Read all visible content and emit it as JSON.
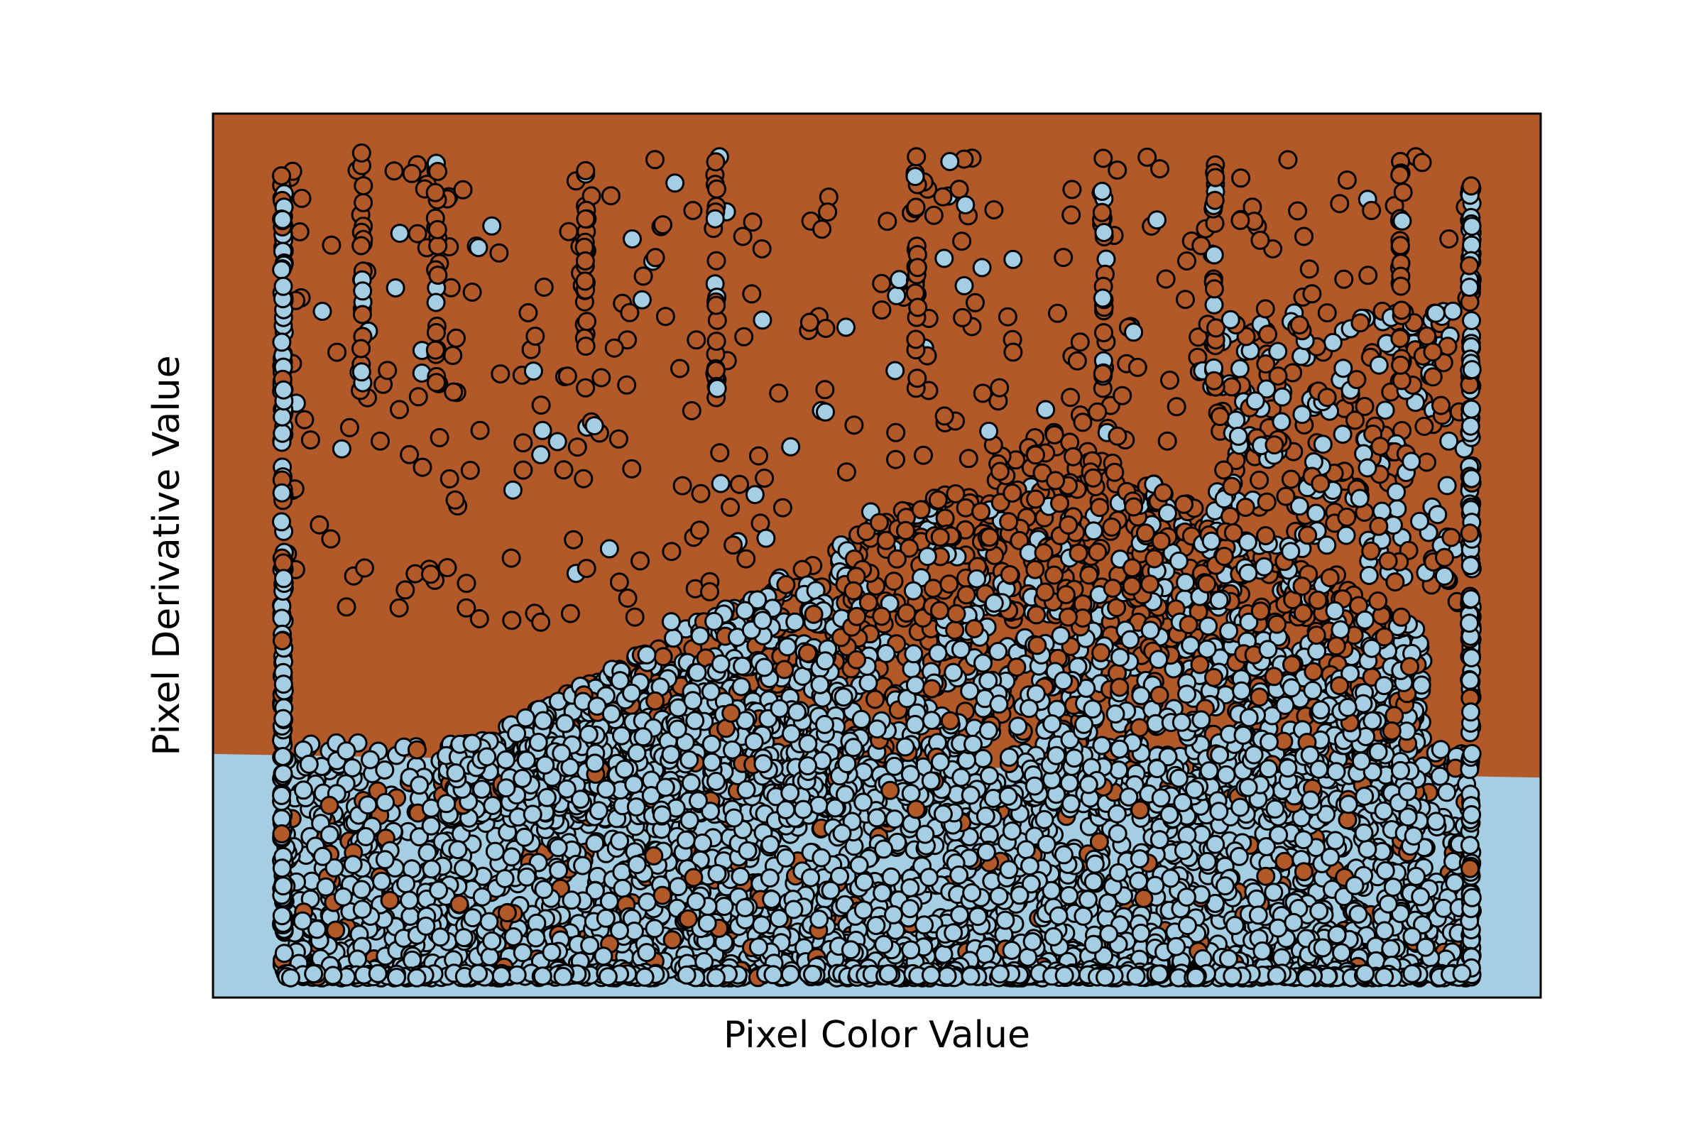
{
  "chart_data": {
    "type": "scatter",
    "title": "",
    "xlabel": "Pixel Color Value",
    "ylabel": "Pixel Derivative Value",
    "xlim": [
      -15,
      270
    ],
    "ylim": [
      -5,
      220
    ],
    "grid": false,
    "legend": "none",
    "x_ticks_shown": false,
    "y_ticks_shown": false,
    "classes": [
      {
        "name": "",
        "color": "#b15928"
      },
      {
        "name": "",
        "color": "#a6cee3"
      }
    ],
    "decision_boundary": {
      "upper_region_color": "#b15928",
      "lower_region_color": "#a6cee3",
      "line": [
        [
          -15,
          57
        ],
        [
          270,
          51
        ]
      ]
    },
    "point_count_estimate": 6000,
    "point_distribution": {
      "x_range": [
        0,
        255
      ],
      "y_range": [
        0,
        210
      ],
      "dense_band_upper_y": 48,
      "vertical_streak_x": [
        0,
        17,
        33,
        65,
        93,
        136,
        176,
        200,
        240,
        255
      ]
    },
    "colors": {
      "brown": "#b15928",
      "light_blue": "#a6cee3",
      "edge": "#000000",
      "frame": "#000000"
    }
  }
}
